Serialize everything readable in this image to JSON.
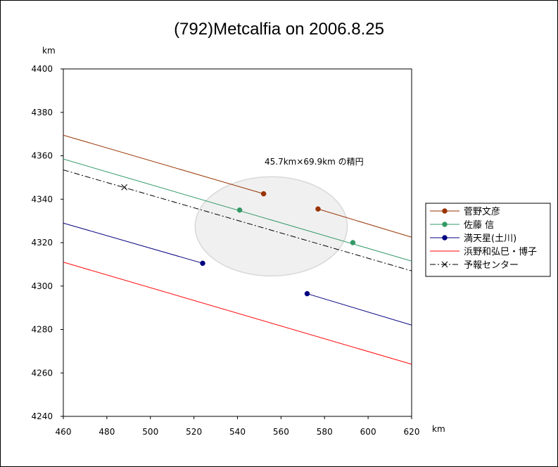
{
  "chart_data": {
    "type": "line",
    "title": "(792)Metcalfia on 2006.8.25",
    "x_unit": "km",
    "y_unit": "km",
    "xlim": [
      460,
      620
    ],
    "ylim": [
      4240,
      4400
    ],
    "x_ticks": [
      "460",
      "480",
      "500",
      "520",
      "540",
      "560",
      "580",
      "600",
      "620"
    ],
    "y_ticks": [
      "4240",
      "4260",
      "4280",
      "4300",
      "4320",
      "4340",
      "4360",
      "4380",
      "4400"
    ],
    "grid": false,
    "legend_position": "right",
    "annotation": "45.7km×69.9km の精円",
    "ellipse": {
      "cx": 555.5,
      "cy": 4327.5,
      "width": 69.9,
      "height": 45.7,
      "color": "#d8d8d8"
    },
    "series": [
      {
        "name": "菅野文彦",
        "color": "#993300",
        "segments": [
          [
            [
              460,
              4369.5
            ],
            [
              552,
              4342.5
            ]
          ],
          [
            [
              577,
              4335.5
            ],
            [
              620,
              4322.5
            ]
          ]
        ],
        "markers": [
          [
            552,
            4342.5
          ],
          [
            577,
            4335.5
          ]
        ]
      },
      {
        "name": "佐藤 信",
        "color": "#339966",
        "segments": [
          [
            [
              460,
              4358.5
            ],
            [
              620,
              4311.5
            ]
          ]
        ],
        "markers": [
          [
            541,
            4335
          ],
          [
            593,
            4320
          ]
        ]
      },
      {
        "name": "満天星(土川)",
        "color": "#000080",
        "segments": [
          [
            [
              460,
              4329
            ],
            [
              524,
              4310.5
            ]
          ],
          [
            [
              572,
              4296.5
            ],
            [
              620,
              4282
            ]
          ]
        ],
        "markers": [
          [
            524,
            4310.5
          ],
          [
            572,
            4296.5
          ]
        ]
      },
      {
        "name": "浜野和弘巳・博子",
        "color": "#ff0000",
        "segments": [
          [
            [
              460,
              4311
            ],
            [
              620,
              4264
            ]
          ]
        ],
        "markers": []
      },
      {
        "name": "予報センター",
        "color": "#000000",
        "dashed": true,
        "segments": [
          [
            [
              460,
              4353.5
            ],
            [
              620,
              4307
            ]
          ]
        ],
        "markers": [
          [
            488,
            4345.5
          ]
        ]
      }
    ]
  }
}
